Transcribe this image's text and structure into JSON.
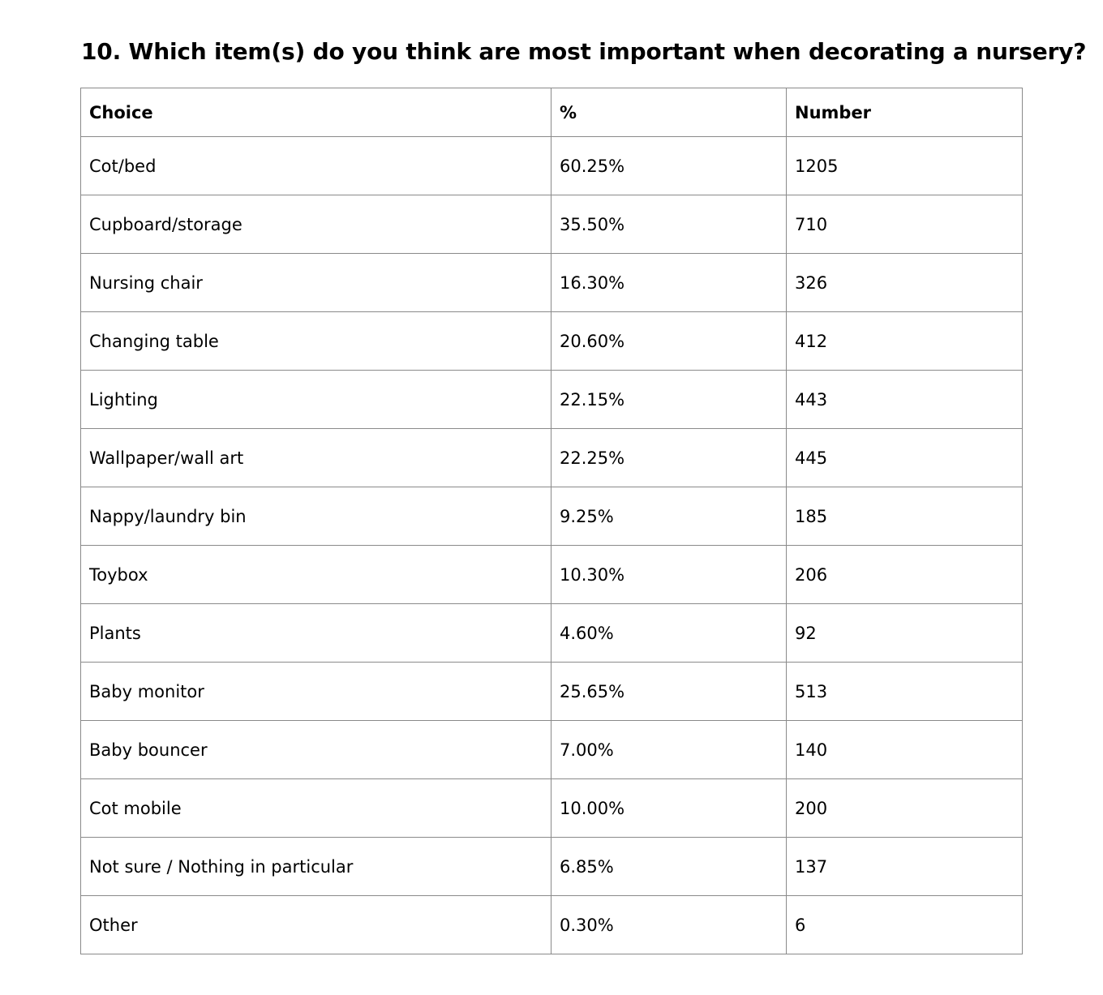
{
  "title": "10. Which item(s) do you think are most important when decorating a nursery?",
  "table": {
    "headers": [
      "Choice",
      "%",
      "Number"
    ],
    "rows": [
      [
        "Cot/bed",
        "60.25%",
        "1205"
      ],
      [
        "Cupboard/storage",
        "35.50%",
        "710"
      ],
      [
        "Nursing chair",
        "16.30%",
        "326"
      ],
      [
        "Changing table",
        "20.60%",
        "412"
      ],
      [
        "Lighting",
        "22.15%",
        "443"
      ],
      [
        "Wallpaper/wall art",
        "22.25%",
        "445"
      ],
      [
        "Nappy/laundry bin",
        "9.25%",
        "185"
      ],
      [
        "Toybox",
        "10.30%",
        "206"
      ],
      [
        "Plants",
        "4.60%",
        "92"
      ],
      [
        "Baby monitor",
        "25.65%",
        "513"
      ],
      [
        "Baby bouncer",
        "7.00%",
        "140"
      ],
      [
        "Cot mobile",
        "10.00%",
        "200"
      ],
      [
        "Not sure / Nothing in particular",
        "6.85%",
        "137"
      ],
      [
        "Other",
        "0.30%",
        "6"
      ]
    ]
  },
  "colors": {
    "text": "#000000",
    "border": "#8a8a8a",
    "background": "#ffffff"
  }
}
